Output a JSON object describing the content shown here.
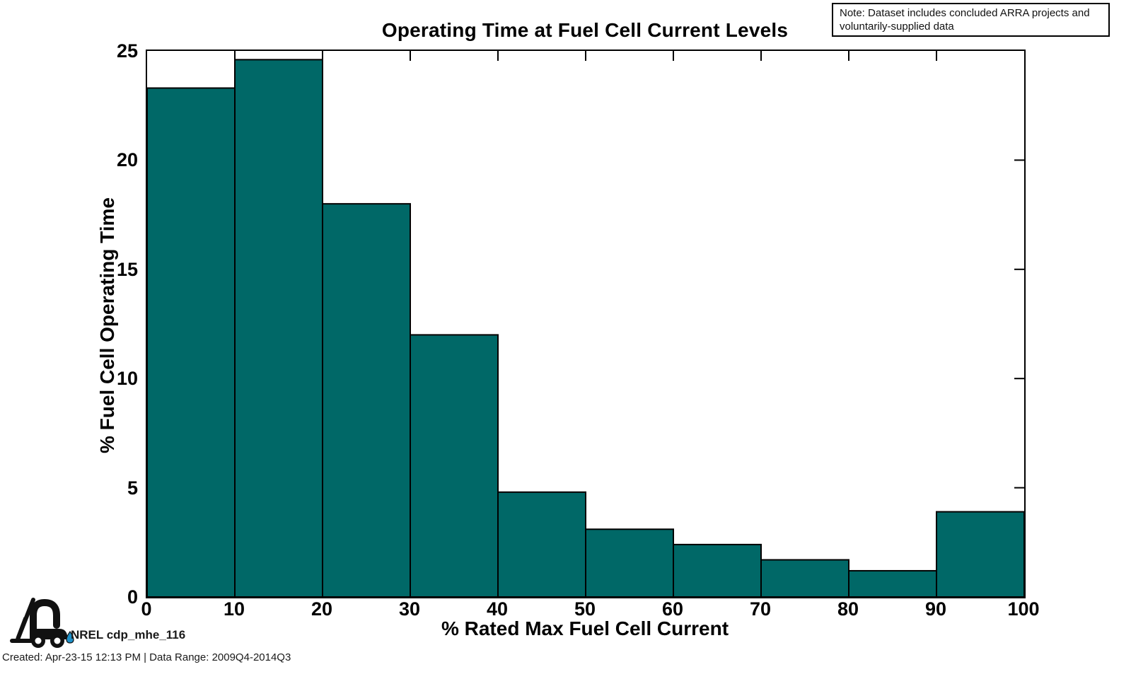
{
  "title": "Operating Time at Fuel Cell Current Levels",
  "note": {
    "text_line1": "Note: Dataset includes concluded ARRA projects and",
    "text_line2": "voluntarily-supplied data"
  },
  "footer": {
    "dataset_id": "NREL cdp_mhe_116",
    "created_line": "Created: Apr-23-15 12:13 PM | Data Range: 2009Q4-2014Q3"
  },
  "colors": {
    "bar_fill": "#006867",
    "bar_edge": "#000000",
    "axis": "#000000",
    "droplet_blue": "#1e90c8"
  },
  "chart_data": {
    "type": "bar",
    "subtype": "histogram",
    "title": "Operating Time at Fuel Cell Current Levels",
    "xlabel": "% Rated Max Fuel Cell Current",
    "ylabel": "% Fuel Cell Operating Time",
    "bin_edges": [
      0,
      10,
      20,
      30,
      40,
      50,
      60,
      70,
      80,
      90,
      100
    ],
    "values": [
      23.3,
      24.6,
      18.0,
      12.0,
      4.8,
      3.1,
      2.4,
      1.7,
      1.2,
      3.9
    ],
    "xlim": [
      0,
      100
    ],
    "ylim": [
      0,
      25
    ],
    "x_ticks": [
      0,
      10,
      20,
      30,
      40,
      50,
      60,
      70,
      80,
      90,
      100
    ],
    "y_ticks": [
      0,
      5,
      10,
      15,
      20,
      25
    ],
    "grid": false,
    "legend": null,
    "bar_fill": "#006867",
    "bar_edge": "#000000"
  }
}
